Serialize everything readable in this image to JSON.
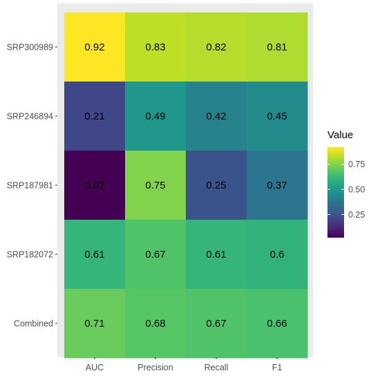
{
  "chart_data": {
    "type": "heatmap",
    "title": "",
    "xlabel": "",
    "ylabel": "",
    "x_categories": [
      "AUC",
      "Precision",
      "Recall",
      "F1"
    ],
    "y_categories": [
      "SRP300989",
      "SRP246894",
      "SRP187981",
      "SRP182072",
      "Combined"
    ],
    "values": [
      [
        0.92,
        0.83,
        0.82,
        0.81
      ],
      [
        0.21,
        0.49,
        0.42,
        0.45
      ],
      [
        0.02,
        0.75,
        0.25,
        0.37
      ],
      [
        0.61,
        0.67,
        0.61,
        0.6
      ],
      [
        0.71,
        0.68,
        0.67,
        0.66
      ]
    ],
    "cell_labels": [
      [
        "0.92",
        "0.83",
        "0.82",
        "0.81"
      ],
      [
        "0.21",
        "0.49",
        "0.42",
        "0.45"
      ],
      [
        "0.02",
        "0.75",
        "0.25",
        "0.37"
      ],
      [
        "0.61",
        "0.67",
        "0.61",
        "0.6"
      ],
      [
        "0.71",
        "0.68",
        "0.67",
        "0.66"
      ]
    ],
    "color_scale": "viridis",
    "value_range": [
      0.02,
      0.92
    ],
    "grid": true,
    "legend": {
      "title": "Value",
      "placement": "right",
      "ticks": [
        0.25,
        0.5,
        0.75
      ],
      "tick_labels": [
        "0.25",
        "0.50",
        "0.75"
      ]
    }
  },
  "colors": {
    "panel_background": "#ebebeb",
    "text": "#000000",
    "tick_text": "#4d4d4d"
  }
}
